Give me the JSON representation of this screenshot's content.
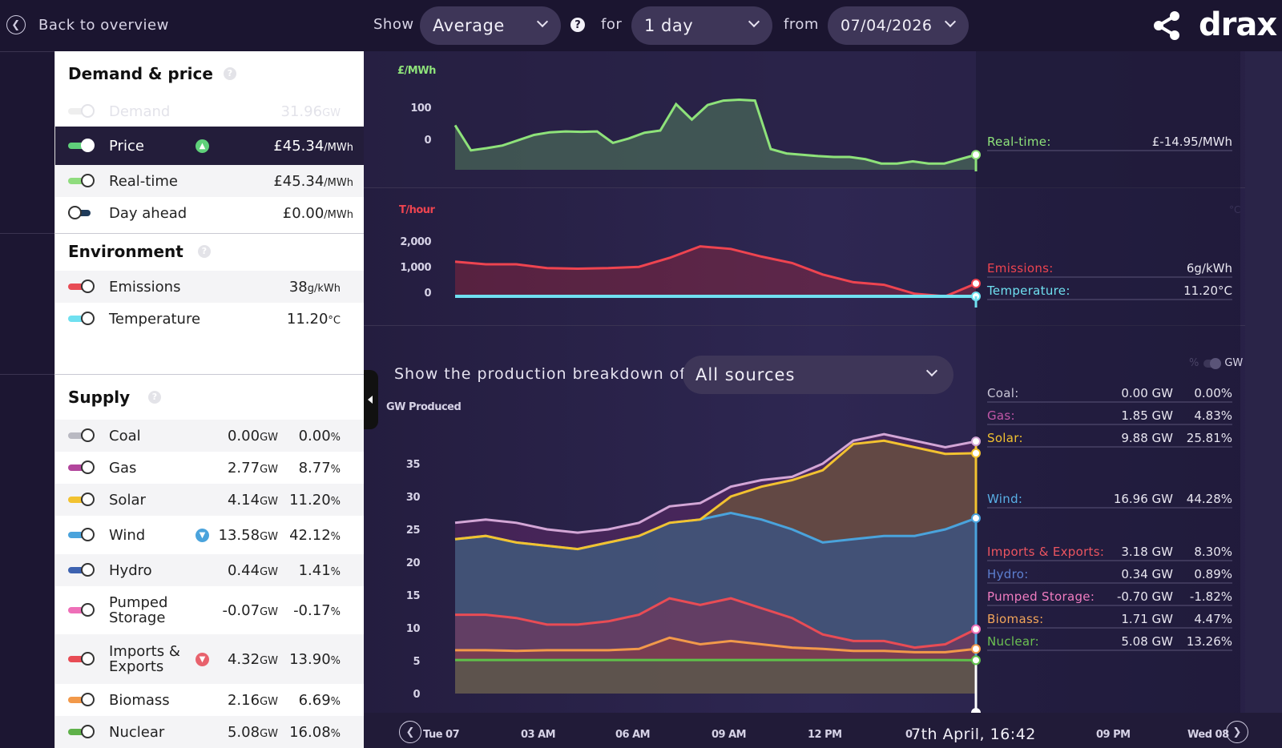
{
  "topbar": {
    "back_label": "Back to overview",
    "show_label": "Show",
    "show_value": "Average",
    "for_label": "for",
    "for_value": "1 day",
    "from_label": "from",
    "from_value": "07/04/2026",
    "logo": "drax"
  },
  "panel": {
    "demand_price": {
      "title": "Demand & price",
      "demand": {
        "label": "Demand",
        "value": "31.96",
        "unit": "GW"
      },
      "price": {
        "label": "Price",
        "value": "£45.34",
        "unit": "/MWh"
      },
      "realtime": {
        "label": "Real-time",
        "value": "£45.34",
        "unit": "/MWh"
      },
      "dayahead": {
        "label": "Day ahead",
        "value": "£0.00",
        "unit": "/MWh"
      }
    },
    "environment": {
      "title": "Environment",
      "emissions": {
        "label": "Emissions",
        "value": "38",
        "unit": "g/kWh"
      },
      "temperature": {
        "label": "Temperature",
        "value": "11.20",
        "unit": "°C"
      }
    },
    "supply": {
      "title": "Supply",
      "items": [
        {
          "label": "Coal",
          "gw": "0.00",
          "pct": "0.00",
          "color": "#b9b9c2"
        },
        {
          "label": "Gas",
          "gw": "2.77",
          "pct": "8.77",
          "color": "#b2459c"
        },
        {
          "label": "Solar",
          "gw": "4.14",
          "pct": "11.20",
          "color": "#f2c230"
        },
        {
          "label": "Wind",
          "gw": "13.58",
          "pct": "42.12",
          "color": "#4aa3dc"
        },
        {
          "label": "Hydro",
          "gw": "0.44",
          "pct": "1.41",
          "color": "#3d62b0"
        },
        {
          "label": "Pumped",
          "label2": "Storage",
          "gw": "-0.07",
          "pct": "-0.17",
          "color": "#ee6fb8"
        },
        {
          "label": "Imports &",
          "label2": "Exports",
          "gw": "4.32",
          "pct": "13.90",
          "color": "#e84c55"
        },
        {
          "label": "Biomass",
          "gw": "2.16",
          "pct": "6.69",
          "color": "#f2994a"
        },
        {
          "label": "Nuclear",
          "gw": "5.08",
          "pct": "16.08",
          "color": "#5fb14a"
        }
      ],
      "gw_unit": "GW",
      "pct_unit": "%"
    }
  },
  "charts": {
    "price_chart": {
      "unit": "£/MWh",
      "ticks": [
        "100",
        "0"
      ],
      "realtime_label": "Real-time:",
      "realtime_value": "£-14.95",
      "realtime_unit": "/MWh"
    },
    "env_chart": {
      "unit": "T/hour",
      "ticks": [
        "2,000",
        "1,000",
        "0"
      ],
      "right_unit": "°C",
      "emissions_label": "Emissions:",
      "emissions_value": "6",
      "emissions_unit": "g/kWh",
      "temperature_label": "Temperature:",
      "temperature_value": "11.20",
      "temperature_unit": "°C"
    },
    "breakdown_label": "Show the production breakdown of",
    "breakdown_value": "All sources",
    "toggle_pct": "%",
    "toggle_gw": "GW",
    "supply_chart": {
      "unit": "GW Produced",
      "ticks": [
        "35",
        "30",
        "25",
        "20",
        "15",
        "10",
        "5",
        "0"
      ],
      "readout": [
        {
          "label": "Coal:",
          "gw": "0.00",
          "pct": "0.00",
          "color": "#c9c6d6"
        },
        {
          "label": "Gas:",
          "gw": "1.85",
          "pct": "4.83",
          "color": "#c257a8"
        },
        {
          "label": "Solar:",
          "gw": "9.88",
          "pct": "25.81",
          "color": "#f2c230"
        },
        {
          "label": "Wind:",
          "gw": "16.96",
          "pct": "44.28",
          "color": "#59b0e6"
        },
        {
          "label": "Imports & Exports:",
          "gw": "3.18",
          "pct": "8.30",
          "color": "#ec5560"
        },
        {
          "label": "Hydro:",
          "gw": "0.34",
          "pct": "0.89",
          "color": "#5d7fd0"
        },
        {
          "label": "Pumped Storage:",
          "gw": "-0.70",
          "pct": "-1.82",
          "color": "#f07cc0"
        },
        {
          "label": "Biomass:",
          "gw": "1.71",
          "pct": "4.47",
          "color": "#f2a55a"
        },
        {
          "label": "Nuclear:",
          "gw": "5.08",
          "pct": "13.26",
          "color": "#6cc052"
        }
      ],
      "gw_unit": "GW",
      "pct_unit": "%"
    },
    "timeline": {
      "labels": [
        "Tue 07",
        "03 AM",
        "06 AM",
        "09 AM",
        "12 PM",
        "0",
        "09 PM",
        "Wed 08"
      ],
      "cursor_time": "7th April, 16:42"
    },
    "chart_data": [
      {
        "type": "area",
        "ylabel": "£/MWh",
        "x": [
          "00:00",
          "00:30",
          "01:00",
          "01:30",
          "02:00",
          "02:30",
          "03:00",
          "03:30",
          "04:00",
          "04:30",
          "05:00",
          "05:30",
          "06:00",
          "06:30",
          "07:00",
          "07:30",
          "08:00",
          "08:30",
          "09:00",
          "09:30",
          "10:00",
          "10:30",
          "11:00",
          "11:30",
          "12:00",
          "12:30",
          "13:00",
          "13:30",
          "14:00",
          "14:30",
          "15:00",
          "15:30",
          "16:00",
          "16:30"
        ],
        "series": [
          {
            "name": "Real-time",
            "values": [
              72,
              15,
              20,
              26,
              38,
              50,
              56,
              58,
              57,
              58,
              32,
              42,
              55,
              60,
              120,
              85,
              118,
              128,
              130,
              128,
              18,
              8,
              5,
              2,
              0,
              0,
              -5,
              -15,
              -15,
              -10,
              -15,
              -15,
              -5,
              5
            ]
          }
        ],
        "ylim": [
          -40,
          160
        ]
      },
      {
        "type": "area",
        "ylabel": "T/hour",
        "x": [
          "00:00",
          "01:00",
          "02:00",
          "03:00",
          "04:00",
          "05:00",
          "06:00",
          "07:00",
          "08:00",
          "09:00",
          "10:00",
          "11:00",
          "12:00",
          "13:00",
          "14:00",
          "15:00",
          "16:00",
          "16:30"
        ],
        "series": [
          {
            "name": "Emissions",
            "values": [
              1350,
              1250,
              1250,
              1100,
              1080,
              1100,
              1150,
              1500,
              1950,
              1850,
              1550,
              1300,
              850,
              550,
              450,
              100,
              0,
              500
            ]
          },
          {
            "name": "Temperature",
            "values": [
              0,
              0,
              0,
              0,
              0,
              0,
              0,
              0,
              0,
              0,
              0,
              0,
              0,
              0,
              0,
              0,
              0,
              0
            ]
          }
        ],
        "ylim": [
          0,
          2500
        ]
      },
      {
        "type": "area",
        "ylabel": "GW Produced",
        "x": [
          "00:00",
          "01:00",
          "02:00",
          "03:00",
          "04:00",
          "05:00",
          "06:00",
          "07:00",
          "08:00",
          "09:00",
          "10:00",
          "11:00",
          "12:00",
          "13:00",
          "14:00",
          "15:00",
          "16:00",
          "16:42"
        ],
        "series": [
          {
            "name": "Nuclear",
            "values": [
              5.1,
              5.1,
              5.1,
              5.1,
              5.1,
              5.1,
              5.1,
              5.1,
              5.1,
              5.1,
              5.1,
              5.1,
              5.1,
              5.1,
              5.1,
              5.1,
              5.1,
              5.08
            ]
          },
          {
            "name": "Biomass",
            "values": [
              6.6,
              6.6,
              6.5,
              6.6,
              6.6,
              6.6,
              6.8,
              8.5,
              7.5,
              8.0,
              7.5,
              7.0,
              6.8,
              6.5,
              6.5,
              6.3,
              6.3,
              6.8
            ]
          },
          {
            "name": "Imports & Exports",
            "values": [
              12.0,
              12.0,
              11.5,
              10.5,
              10.5,
              11.0,
              12.0,
              14.5,
              13.5,
              14.5,
              13.0,
              11.5,
              9.0,
              8.0,
              8.0,
              7.0,
              7.5,
              9.8
            ]
          },
          {
            "name": "Wind",
            "values": [
              23.5,
              24.0,
              23.0,
              22.5,
              22.0,
              23.0,
              24.0,
              26.0,
              26.5,
              27.5,
              26.5,
              25.0,
              23.0,
              23.5,
              24.0,
              24.0,
              25.0,
              26.7
            ]
          },
          {
            "name": "Solar",
            "values": [
              23.5,
              24.0,
              23.0,
              22.5,
              22.0,
              23.0,
              24.0,
              26.0,
              26.5,
              30.0,
              31.5,
              32.5,
              34.0,
              38.0,
              38.5,
              37.5,
              36.5,
              36.6
            ]
          },
          {
            "name": "Gas",
            "values": [
              26.0,
              26.5,
              26.0,
              25.0,
              24.5,
              25.0,
              26.0,
              28.5,
              29.0,
              31.5,
              32.5,
              33.0,
              35.0,
              38.5,
              39.5,
              38.5,
              37.5,
              38.4
            ]
          }
        ],
        "ylim": [
          0,
          40
        ]
      }
    ]
  }
}
